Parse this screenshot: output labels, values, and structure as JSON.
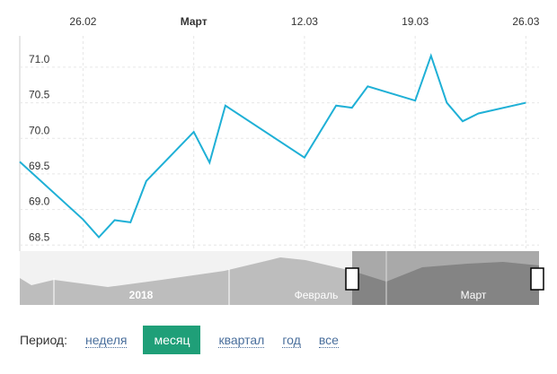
{
  "chart_data": {
    "type": "line",
    "x": [
      "22.02",
      "26.02",
      "27.02",
      "28.02",
      "01.03",
      "02.03",
      "05.03",
      "06.03",
      "07.03",
      "12.03",
      "14.03",
      "15.03",
      "16.03",
      "19.03",
      "20.03",
      "21.03",
      "22.03",
      "23.03",
      "26.03"
    ],
    "series": [
      {
        "color": "#1fb0d6",
        "values": [
          69.67,
          68.86,
          68.61,
          68.85,
          68.82,
          69.4,
          70.09,
          69.66,
          70.46,
          69.73,
          70.46,
          70.43,
          70.73,
          70.53,
          71.16,
          70.5,
          70.24,
          70.35,
          70.5
        ]
      }
    ],
    "xlim": [
      "22.02",
      "27.03"
    ],
    "xticks": [
      "26.02",
      {
        "value": "05.03",
        "label": "Март"
      },
      "12.03",
      "19.03",
      "26.03"
    ],
    "ylim": [
      68.44,
      71.44
    ],
    "yticks": [
      68.5,
      {
        "value": 69,
        "label": "69.0"
      },
      69.5,
      {
        "value": 70,
        "label": "70.0"
      },
      70.5,
      {
        "value": 71,
        "label": "71.0"
      }
    ],
    "grid": true
  },
  "navigator": {
    "labels": [
      "2018",
      "Февраль",
      "Март"
    ]
  },
  "period": {
    "label": "Период:",
    "options": [
      "неделя",
      "месяц",
      "квартал",
      "год",
      "все"
    ],
    "active": 1
  }
}
